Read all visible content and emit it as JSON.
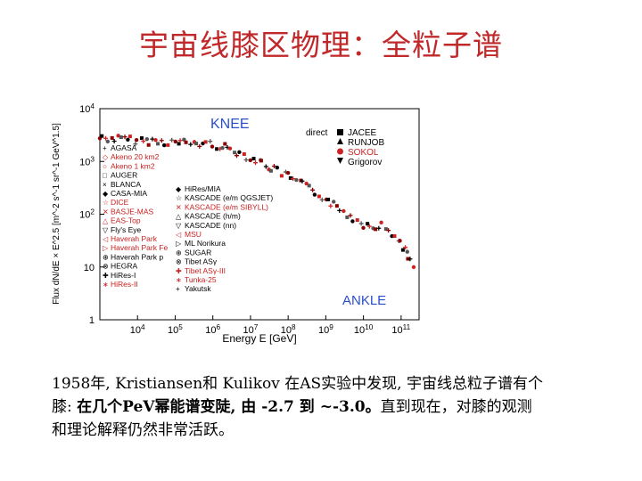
{
  "slide": {
    "title": "宇宙线膝区物理：全粒子谱",
    "caption_line1": "1958年, Kristiansen和 Kulikov 在AS实验中发现, 宇宙线总粒子谱有个",
    "caption_line2_a": "膝: ",
    "caption_line2_b": "在几个PeV幂能谱变陡, 由 -2.7 到 ~-3.0。",
    "caption_line2_c": "直到现在，对膝的观测",
    "caption_line3": "和理论解释仍然非常活跃。"
  },
  "chart_data": {
    "type": "scatter",
    "title": "",
    "xlabel": "Energy E [GeV]",
    "ylabel": "Flux dN/dE × E^2.5 [m^-2 s^-1 sr^-1 GeV^1.5]",
    "x_scale": "log",
    "y_scale": "log",
    "xlim": [
      1000,
      300000000000
    ],
    "ylim": [
      1,
      10000
    ],
    "x_tick_labels": [
      "10^4",
      "10^5",
      "10^6",
      "10^7",
      "10^8",
      "10^9",
      "10^10",
      "10^11"
    ],
    "y_tick_labels": [
      "1",
      "10",
      "10^2",
      "10^3",
      "10^4"
    ],
    "annotations": [
      "KNEE",
      "ANKLE"
    ],
    "legend_direct": {
      "header": "direct",
      "entries": [
        "JACEE",
        "RUNJOB",
        "SOKOL",
        "Grigorov"
      ]
    },
    "legend_left": [
      "AGASA",
      "Akeno 20 km2",
      "Akeno 1 km2",
      "AUGER",
      "BLANCA",
      "CASA-MIA",
      "DICE",
      "BASJE-MAS",
      "EAS-Top",
      "Fly's Eye",
      "Haverah Park",
      "Haverah Park Fe",
      "Haverah Park p",
      "HEGRA",
      "HiRes-I",
      "HiRes-II"
    ],
    "legend_right": [
      "HiRes/MIA",
      "KASCADE (e/m QGSJET)",
      "KASCADE (e/m SIBYLL)",
      "KASCADE (h/m)",
      "KASCADE (nn)",
      "MSU",
      "ML Norikura",
      "SUGAR",
      "Tibet ASγ",
      "Tibet ASγ-III",
      "Tunka-25",
      "Yakutsk"
    ],
    "series": [
      {
        "name": "all-particle flux (all experiments)",
        "x": [
          1000,
          3000,
          10000,
          30000,
          100000,
          300000,
          1000000,
          3000000,
          10000000,
          30000000,
          100000000,
          300000000,
          1000000000,
          3000000000,
          10000000000,
          30000000000,
          100000000000,
          200000000000
        ],
        "y": [
          2800,
          2650,
          2500,
          2400,
          2300,
          2200,
          2100,
          1700,
          1200,
          800,
          520,
          330,
          200,
          110,
          65,
          60,
          30,
          10
        ]
      }
    ]
  }
}
